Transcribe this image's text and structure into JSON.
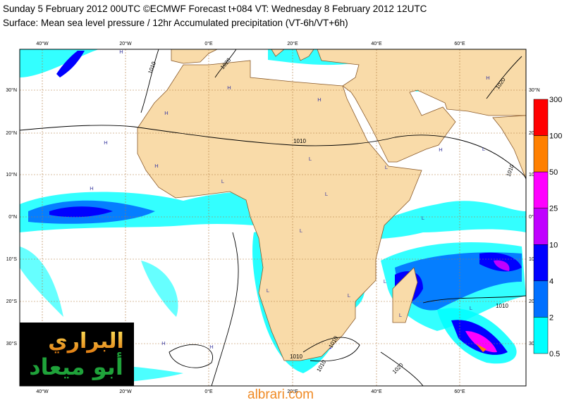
{
  "header": {
    "title": "Sunday 5 February 2012 00UTC ©ECMWF Forecast t+084 VT: Wednesday 8 February 2012 12UTC",
    "subtitle": "Surface: Mean sea level pressure / 12hr Accumulated precipitation (VT-6h/VT+6h)"
  },
  "map": {
    "longitude_labels": [
      "40°W",
      "20°W",
      "0°E",
      "20°E",
      "40°E",
      "60°E"
    ],
    "latitude_labels": [
      "30°N",
      "20°N",
      "10°N",
      "0°N",
      "10°S",
      "20°S",
      "30°S"
    ],
    "high_label": "H",
    "low_label": "L",
    "isobar_labels": [
      "1010",
      "1020",
      "1020",
      "1010",
      "1010",
      "1010",
      "1010",
      "1010",
      "1010",
      "1020"
    ]
  },
  "colorbar": {
    "labels": [
      300,
      100,
      50,
      25,
      10,
      4,
      2,
      0.5
    ],
    "colors": [
      "#ff0000",
      "#ff8000",
      "#ff00ff",
      "#c000ff",
      "#0000ff",
      "#0070ff",
      "#00ffff"
    ]
  },
  "watermark": {
    "line1": "البراري",
    "line2": "أبو ميعاد",
    "site": "albrari.com"
  }
}
